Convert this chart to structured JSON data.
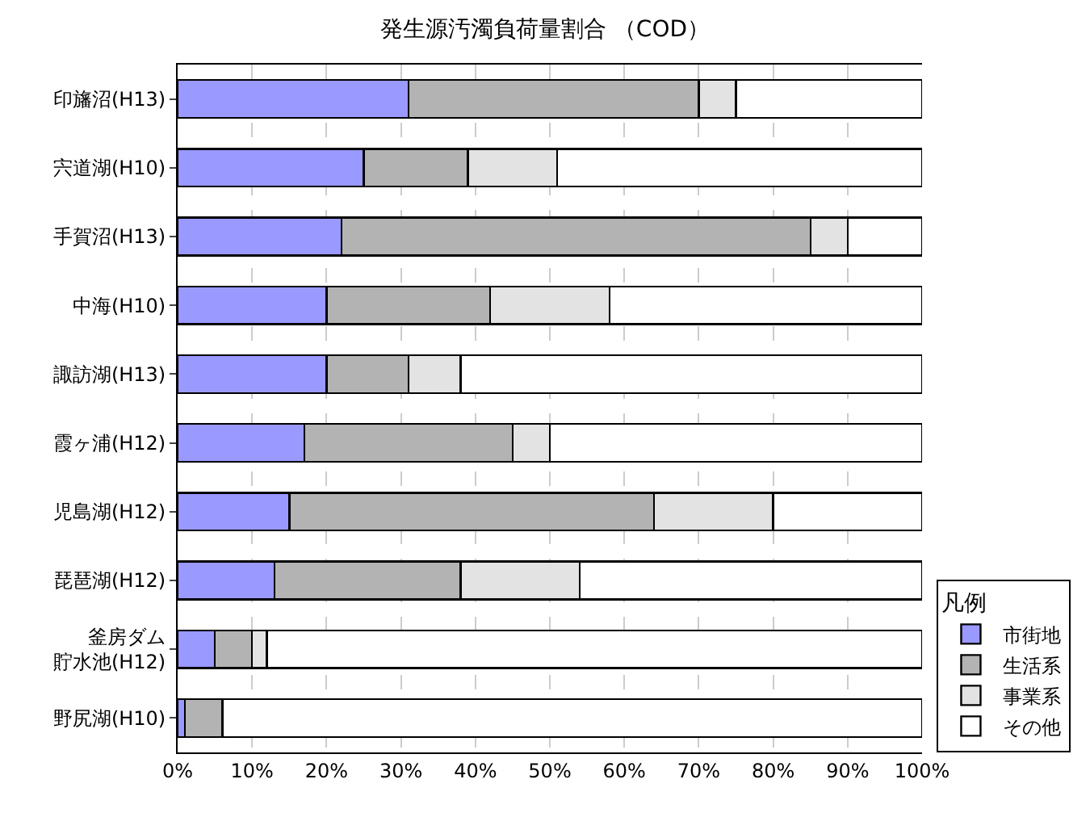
{
  "chart_data": {
    "type": "bar",
    "orientation": "horizontal",
    "stacked": true,
    "title": "発生源汚濁負荷量割合 （COD）",
    "legend_title": "凡例",
    "categories": [
      "印旛沼(H13)",
      "宍道湖(H10)",
      "手賀沼(H13)",
      "中海(H10)",
      "諏訪湖(H13)",
      "霞ヶ浦(H12)",
      "児島湖(H12)",
      "琵琶湖(H12)",
      "釜房ダム貯水池(H12)",
      "野尻湖(H10)"
    ],
    "series": [
      {
        "name": "市街地",
        "color": "#9999ff",
        "values": [
          31,
          25,
          22,
          20,
          20,
          17,
          15,
          13,
          5,
          1
        ]
      },
      {
        "name": "生活系",
        "color": "#b3b3b3",
        "values": [
          39,
          14,
          63,
          22,
          11,
          28,
          49,
          25,
          5,
          5
        ]
      },
      {
        "name": "事業系",
        "color": "#e3e3e3",
        "values": [
          5,
          12,
          5,
          16,
          7,
          5,
          16,
          16,
          2,
          0
        ]
      },
      {
        "name": "その他",
        "color": "#ffffff",
        "values": [
          25,
          49,
          10,
          42,
          62,
          50,
          20,
          46,
          88,
          94
        ]
      }
    ],
    "xlim": [
      0,
      100
    ],
    "xticks": [
      {
        "value": 0,
        "label": "0%"
      },
      {
        "value": 10,
        "label": "10%"
      },
      {
        "value": 20,
        "label": "20%"
      },
      {
        "value": 30,
        "label": "30%"
      },
      {
        "value": 40,
        "label": "40%"
      },
      {
        "value": 50,
        "label": "50%"
      },
      {
        "value": 60,
        "label": "60%"
      },
      {
        "value": 70,
        "label": "70%"
      },
      {
        "value": 80,
        "label": "80%"
      },
      {
        "value": 90,
        "label": "90%"
      },
      {
        "value": 100,
        "label": "100%"
      }
    ],
    "grid": "x",
    "legend": "right"
  }
}
